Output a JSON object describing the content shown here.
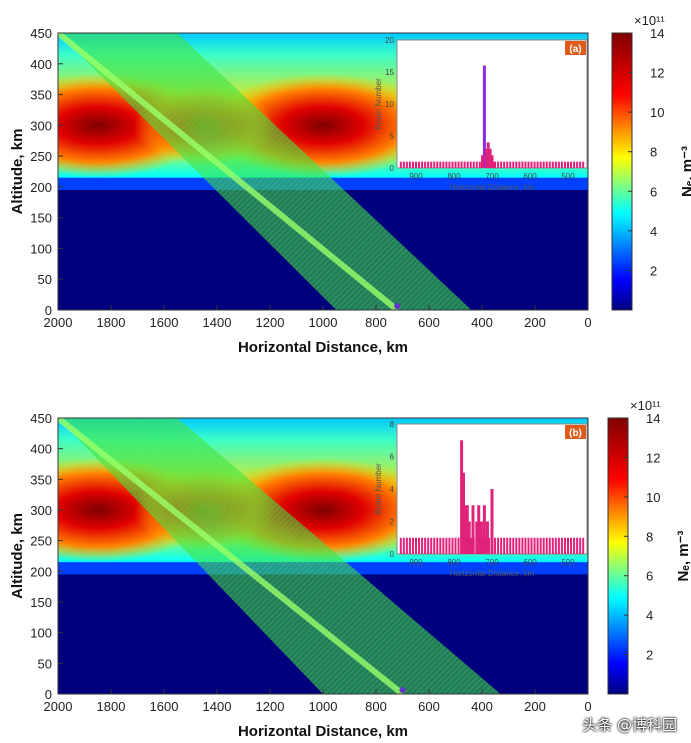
{
  "colors": {
    "jet": [
      "#00007f",
      "#0000ff",
      "#0080ff",
      "#00ffff",
      "#80ff80",
      "#ffff00",
      "#ff8000",
      "#ff0000",
      "#7f0000"
    ],
    "beam": "#3ce63c",
    "inset_bar": "#e0227a",
    "inset_spike": "#8a2be2",
    "tag_bg": "#e05a1a"
  },
  "chart_data": [
    {
      "id": "a",
      "type": "heatmap",
      "panel_tag": "(a)",
      "xlabel": "Horizontal Distance, km",
      "ylabel": "Altitude, km",
      "xlim": [
        2000,
        0
      ],
      "ylim": [
        0,
        450
      ],
      "xticks": [
        2000,
        1800,
        1600,
        1400,
        1200,
        1000,
        800,
        600,
        400,
        200,
        0
      ],
      "yticks": [
        0,
        50,
        100,
        150,
        200,
        250,
        300,
        350,
        400,
        450
      ],
      "colorbar": {
        "label": "Nₑ, m⁻³",
        "exponent": "×10¹¹",
        "ticks": [
          2,
          4,
          6,
          8,
          10,
          12,
          14
        ],
        "range": [
          0,
          14
        ]
      },
      "ionosphere": {
        "peak_altitude": 300,
        "bottom_edge": 215,
        "crest_x": [
          1850,
          1000
        ],
        "peak_value": 14
      },
      "beam": {
        "top_x": [
          2000,
          1550
        ],
        "bottom_x": [
          950,
          440
        ],
        "focus_x": 720
      },
      "inset": {
        "ylabel": "Beam Number",
        "xlabel": "Horizontal Distance, km",
        "ylim": [
          0,
          20
        ],
        "yticks": [
          0,
          5,
          10,
          15,
          20
        ],
        "xticks": [
          900,
          800,
          700,
          600,
          500
        ],
        "bars": [
          {
            "x": 720,
            "value": 16
          },
          {
            "x": 715,
            "value": 3
          },
          {
            "x": 710,
            "value": 4
          },
          {
            "x": 705,
            "value": 3
          },
          {
            "x": 700,
            "value": 2
          },
          {
            "x": 725,
            "value": 2
          },
          {
            "x": 695,
            "value": 1
          }
        ],
        "baseline_value": 1
      }
    },
    {
      "id": "b",
      "type": "heatmap",
      "panel_tag": "(b)",
      "xlabel": "Horizontal Distance, km",
      "ylabel": "Altitude, km",
      "xlim": [
        2000,
        0
      ],
      "ylim": [
        0,
        450
      ],
      "xticks": [
        2000,
        1800,
        1600,
        1400,
        1200,
        1000,
        800,
        600,
        400,
        200,
        0
      ],
      "yticks": [
        0,
        50,
        100,
        150,
        200,
        250,
        300,
        350,
        400,
        450
      ],
      "colorbar": {
        "label": "Nₑ, m⁻³",
        "exponent": "×10¹¹",
        "ticks": [
          2,
          4,
          6,
          8,
          10,
          12,
          14
        ],
        "range": [
          0,
          14
        ]
      },
      "ionosphere": {
        "peak_altitude": 300,
        "bottom_edge": 215,
        "crest_x": [
          1850,
          1000
        ],
        "peak_value": 14
      },
      "beam": {
        "top_x": [
          2000,
          1550
        ],
        "bottom_x": [
          1000,
          330
        ],
        "focus_x": 700
      },
      "inset": {
        "ylabel": "Beam Number",
        "xlabel": "Horizontal Distance, km",
        "ylim": [
          0,
          8
        ],
        "yticks": [
          0,
          2,
          4,
          6,
          8
        ],
        "xticks": [
          900,
          800,
          700,
          600,
          500
        ],
        "bars": [
          {
            "x": 780,
            "value": 7
          },
          {
            "x": 775,
            "value": 5
          },
          {
            "x": 770,
            "value": 3
          },
          {
            "x": 765,
            "value": 3
          },
          {
            "x": 760,
            "value": 2
          },
          {
            "x": 750,
            "value": 3
          },
          {
            "x": 740,
            "value": 2
          },
          {
            "x": 735,
            "value": 3
          },
          {
            "x": 728,
            "value": 2
          },
          {
            "x": 720,
            "value": 3
          },
          {
            "x": 712,
            "value": 2
          },
          {
            "x": 700,
            "value": 4
          }
        ],
        "baseline_value": 1
      }
    }
  ],
  "watermark": "头条 @博科园"
}
